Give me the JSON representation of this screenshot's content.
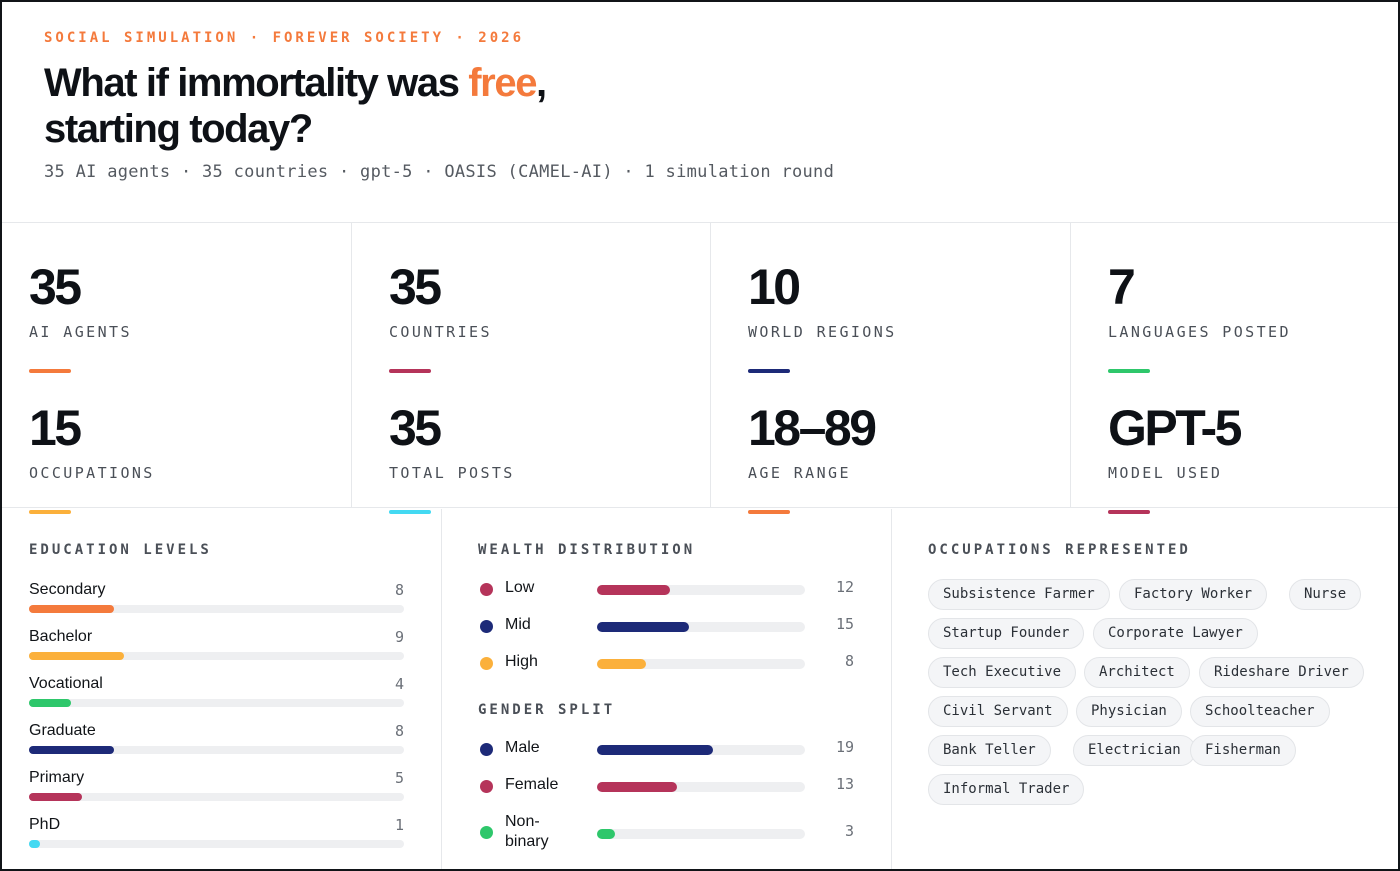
{
  "header": {
    "eyebrow": "SOCIAL SIMULATION · FOREVER SOCIETY · 2026",
    "headline_part1": "What if immortality was ",
    "headline_accent": "free",
    "headline_part2": ",",
    "headline_line2": "starting today?",
    "subline": "35 AI agents · 35 countries · gpt-5 · OASIS (CAMEL-AI) · 1 simulation round"
  },
  "colors": {
    "orange": "#f47a3c",
    "crimson": "#b5345a",
    "navy": "#1d2a78",
    "green": "#2ec76b",
    "amber": "#fbb03b",
    "cyan": "#43d9f2"
  },
  "stats": [
    {
      "value": "35",
      "label": "AI AGENTS",
      "color": "#f47a3c"
    },
    {
      "value": "35",
      "label": "COUNTRIES",
      "color": "#b5345a"
    },
    {
      "value": "10",
      "label": "WORLD REGIONS",
      "color": "#1d2a78"
    },
    {
      "value": "7",
      "label": "LANGUAGES POSTED",
      "color": "#2ec76b"
    },
    {
      "value": "15",
      "label": "OCCUPATIONS",
      "color": "#fbb03b"
    },
    {
      "value": "35",
      "label": "TOTAL POSTS",
      "color": "#43d9f2"
    },
    {
      "value": "18–89",
      "label": "AGE RANGE",
      "color": "#f47a3c"
    },
    {
      "value": "GPT-5",
      "label": "MODEL USED",
      "color": "#b5345a"
    }
  ],
  "education": {
    "title": "EDUCATION LEVELS",
    "max": 35,
    "items": [
      {
        "label": "Secondary",
        "count": "8",
        "value": 8,
        "color": "#f47a3c"
      },
      {
        "label": "Bachelor",
        "count": "9",
        "value": 9,
        "color": "#fbb03b"
      },
      {
        "label": "Vocational",
        "count": "4",
        "value": 4,
        "color": "#2ec76b"
      },
      {
        "label": "Graduate",
        "count": "8",
        "value": 8,
        "color": "#1d2a78"
      },
      {
        "label": "Primary",
        "count": "5",
        "value": 5,
        "color": "#b5345a"
      },
      {
        "label": "PhD",
        "count": "1",
        "value": 1,
        "color": "#43d9f2"
      }
    ]
  },
  "wealth": {
    "title": "WEALTH DISTRIBUTION",
    "max": 35,
    "items": [
      {
        "label": "Low",
        "count": "12",
        "value": 12,
        "color": "#b5345a"
      },
      {
        "label": "Mid",
        "count": "15",
        "value": 15,
        "color": "#1d2a78"
      },
      {
        "label": "High",
        "count": "8",
        "value": 8,
        "color": "#fbb03b"
      }
    ]
  },
  "gender": {
    "title": "GENDER SPLIT",
    "max": 35,
    "items": [
      {
        "label": "Male",
        "count": "19",
        "value": 19,
        "color": "#1d2a78"
      },
      {
        "label": "Female",
        "count": "13",
        "value": 13,
        "color": "#b5345a"
      },
      {
        "label": "Non-binary",
        "count": "3",
        "value": 3,
        "color": "#2ec76b"
      }
    ]
  },
  "occupations": {
    "title": "OCCUPATIONS REPRESENTED",
    "items": [
      "Subsistence Farmer",
      "Factory Worker",
      "Nurse",
      "Startup Founder",
      "Corporate Lawyer",
      "Tech Executive",
      "Architect",
      "Rideshare Driver",
      "Civil Servant",
      "Physician",
      "Schoolteacher",
      "Bank Teller",
      "Electrician",
      "Fisherman",
      "Informal Trader"
    ]
  }
}
